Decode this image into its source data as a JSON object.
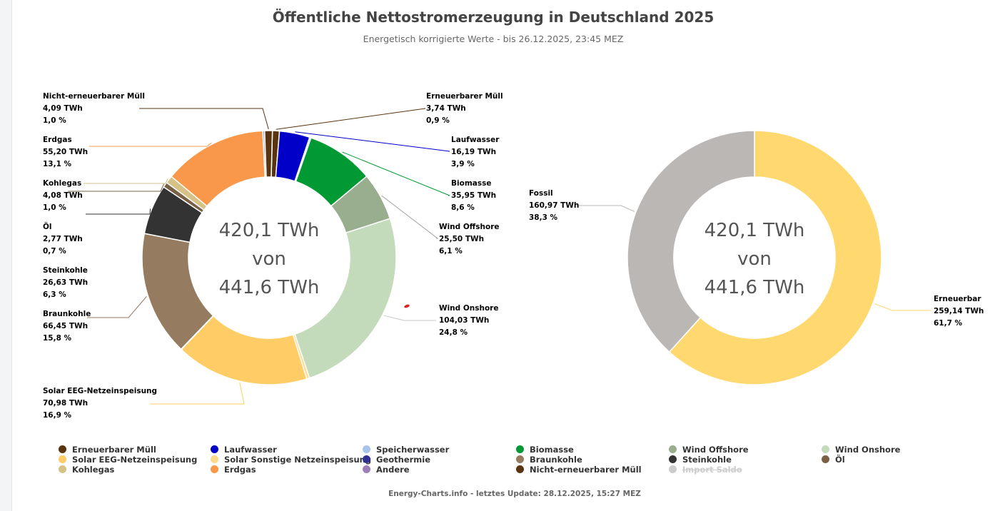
{
  "title": "Öffentliche Nettostromerzeugung in Deutschland 2025",
  "subtitle": "Energetisch korrigierte Werte - bis 26.12.2025, 23:45 MEZ",
  "footer": "Energy-Charts.info - letztes Update: 28.12.2025, 15:27 MEZ",
  "chart_data": [
    {
      "type": "pie",
      "center_lines": [
        "420,1 TWh",
        "von",
        "441,6 TWh"
      ],
      "slices": [
        {
          "name": "Erneuerbarer Müll",
          "value": 3.74,
          "value_label": "3,74 TWh",
          "pct_label": "0,9 %",
          "color": "#5a3410"
        },
        {
          "name": "Laufwasser",
          "value": 16.19,
          "value_label": "16,19 TWh",
          "pct_label": "3,9 %",
          "color": "#0000c8"
        },
        {
          "name": "Speicherwasser",
          "value": 0.8,
          "color": "#a9c4ea"
        },
        {
          "name": "Biomasse",
          "value": 35.95,
          "value_label": "35,95 TWh",
          "pct_label": "8,6 %",
          "color": "#009933"
        },
        {
          "name": "Wind Offshore",
          "value": 25.5,
          "value_label": "25,50 TWh",
          "pct_label": "6,1 %",
          "color": "#99ad8f"
        },
        {
          "name": "Wind Onshore",
          "value": 104.03,
          "value_label": "104,03 TWh",
          "pct_label": "24,8 %",
          "color": "#c3dabb"
        },
        {
          "name": "Solar Sonstige Netzeinspeisung",
          "value": 1.5,
          "color": "#ffd98c"
        },
        {
          "name": "Solar EEG-Netzeinspeisung",
          "value": 70.98,
          "value_label": "70,98 TWh",
          "pct_label": "16,9 %",
          "color": "#ffcc66"
        },
        {
          "name": "Geothermie",
          "value": 0.2,
          "color": "#2e3192"
        },
        {
          "name": "Braunkohle",
          "value": 66.45,
          "value_label": "66,45 TWh",
          "pct_label": "15,8 %",
          "color": "#957b60"
        },
        {
          "name": "Steinkohle",
          "value": 26.63,
          "value_label": "26,63 TWh",
          "pct_label": "6,3 %",
          "color": "#333333"
        },
        {
          "name": "Öl",
          "value": 2.77,
          "value_label": "2,77 TWh",
          "pct_label": "0,7 %",
          "color": "#7a6145"
        },
        {
          "name": "Kohlegas",
          "value": 4.08,
          "value_label": "4,08 TWh",
          "pct_label": "1,0 %",
          "color": "#d6c187"
        },
        {
          "name": "Erdgas",
          "value": 55.2,
          "value_label": "55,20 TWh",
          "pct_label": "13,1 %",
          "color": "#f9984a"
        },
        {
          "name": "Andere",
          "value": 1.0,
          "color": "#b39ac6"
        },
        {
          "name": "Nicht-erneuerbarer Müll",
          "value": 4.09,
          "value_label": "4,09 TWh",
          "pct_label": "1,0 %",
          "color": "#5a3410"
        }
      ]
    },
    {
      "type": "pie",
      "center_lines": [
        "420,1 TWh",
        "von",
        "441,6 TWh"
      ],
      "slices": [
        {
          "name": "Erneuerbar",
          "value": 259.14,
          "value_label": "259,14 TWh",
          "pct_label": "61,7 %",
          "color": "#ffd970"
        },
        {
          "name": "Fossil",
          "value": 160.97,
          "value_label": "160,97 TWh",
          "pct_label": "38,3 %",
          "color": "#bbb7b4"
        }
      ]
    }
  ],
  "legend": [
    {
      "label": "Erneuerbarer Müll",
      "color": "#5a3410",
      "enabled": true
    },
    {
      "label": "Laufwasser",
      "color": "#0000c8",
      "enabled": true
    },
    {
      "label": "Speicherwasser",
      "color": "#a9c4ea",
      "enabled": true
    },
    {
      "label": "Biomasse",
      "color": "#009933",
      "enabled": true
    },
    {
      "label": "Wind Offshore",
      "color": "#99ad8f",
      "enabled": true
    },
    {
      "label": "Wind Onshore",
      "color": "#c3dabb",
      "enabled": true
    },
    {
      "label": "Solar EEG-Netzeinspeisung",
      "color": "#ffcc66",
      "enabled": true
    },
    {
      "label": "Solar Sonstige Netzeinspeisung",
      "color": "#ffd98c",
      "enabled": true
    },
    {
      "label": "Geothermie",
      "color": "#2e3192",
      "enabled": true
    },
    {
      "label": "Braunkohle",
      "color": "#957b60",
      "enabled": true
    },
    {
      "label": "Steinkohle",
      "color": "#333333",
      "enabled": true
    },
    {
      "label": "Öl",
      "color": "#7a6145",
      "enabled": true
    },
    {
      "label": "Kohlegas",
      "color": "#d6c187",
      "enabled": true
    },
    {
      "label": "Erdgas",
      "color": "#f9984a",
      "enabled": true
    },
    {
      "label": "Andere",
      "color": "#9b7fb8",
      "enabled": true
    },
    {
      "label": "Nicht-erneuerbarer Müll",
      "color": "#5a3410",
      "enabled": true
    },
    {
      "label": "Import Saldo",
      "color": "#cccccc",
      "enabled": false
    }
  ]
}
